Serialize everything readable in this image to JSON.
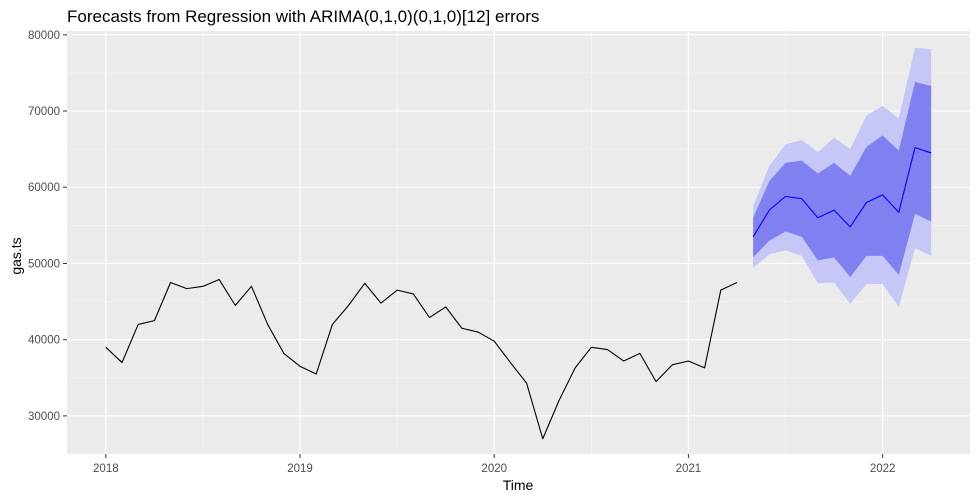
{
  "chart_data": {
    "type": "line",
    "title": "Forecasts from Regression with ARIMA(0,1,0)(0,1,0)[12] errors",
    "xlabel": "Time",
    "ylabel": "gas.ts",
    "xlim": [
      2017.8,
      2022.45
    ],
    "ylim": [
      25000,
      80500
    ],
    "x_ticks": [
      2018,
      2019,
      2020,
      2021,
      2022
    ],
    "x_tick_labels": [
      "2018",
      "2019",
      "2020",
      "2021",
      "2022"
    ],
    "y_ticks": [
      30000,
      40000,
      50000,
      60000,
      70000,
      80000
    ],
    "y_tick_labels": [
      "30000",
      "40000",
      "50000",
      "60000",
      "70000",
      "80000"
    ],
    "grid": true,
    "legend": "none",
    "colors": {
      "panel_background": "#ebebeb",
      "grid_major": "#ffffff",
      "grid_minor": "#f5f5f5",
      "observed_line": "#000000",
      "forecast_line": "#0000ff",
      "band_95": "#c6c6f7",
      "band_80": "#8080f1"
    },
    "observed": {
      "start": [
        2018,
        1
      ],
      "frequency": 12,
      "values": [
        39000,
        37000,
        42000,
        42500,
        47500,
        46700,
        47000,
        47900,
        44500,
        47000,
        42000,
        38200,
        36500,
        35500,
        42000,
        44500,
        47400,
        44800,
        46500,
        46000,
        42900,
        44300,
        41500,
        41000,
        39800,
        37000,
        34300,
        27000,
        32000,
        36300,
        39000,
        38700,
        37200,
        38200,
        34500,
        36700,
        37200,
        36300,
        46500,
        47500
      ]
    },
    "forecast": {
      "start": [
        2021,
        5
      ],
      "frequency": 12,
      "mean": [
        53500,
        57000,
        58800,
        58500,
        56000,
        57000,
        54800,
        58000,
        59000,
        56700,
        65200,
        64500
      ],
      "lo80": [
        50800,
        53000,
        54200,
        53500,
        50400,
        50800,
        48200,
        51000,
        51000,
        48500,
        56500,
        55500
      ],
      "hi80": [
        56000,
        60800,
        63200,
        63500,
        61800,
        63200,
        61500,
        65300,
        66800,
        64800,
        73800,
        73300
      ],
      "lo95": [
        49400,
        51200,
        51700,
        51000,
        47400,
        47500,
        44700,
        47300,
        47300,
        44300,
        52000,
        51000
      ],
      "hi95": [
        57500,
        62800,
        65600,
        66200,
        64600,
        66500,
        65000,
        69400,
        70700,
        69000,
        78300,
        78100
      ]
    }
  }
}
